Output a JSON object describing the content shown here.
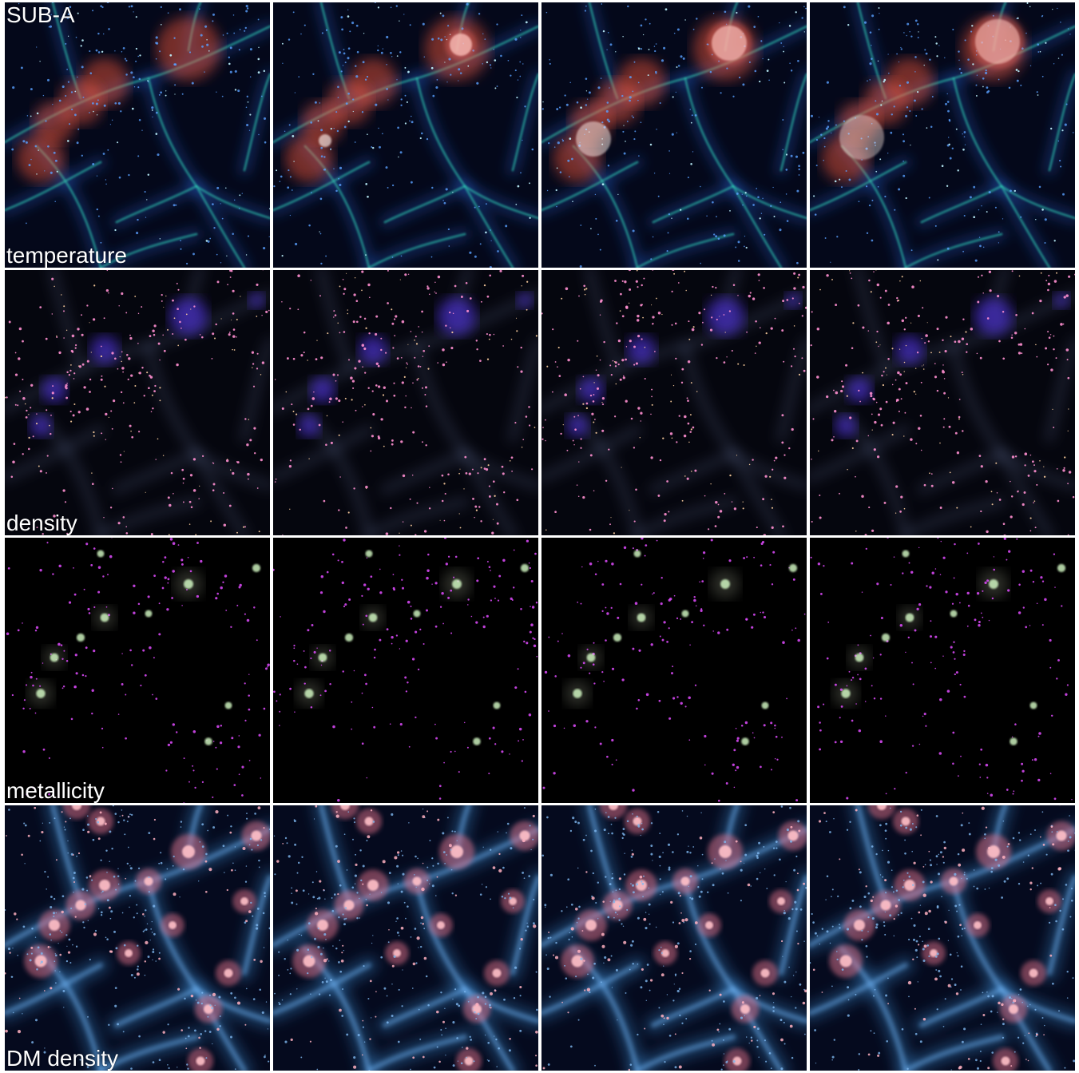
{
  "figure": {
    "simulation_label": "SUB-A",
    "rows": [
      {
        "label": "temperature",
        "style": "temperature"
      },
      {
        "label": "density",
        "style": "density"
      },
      {
        "label": "metallicity",
        "style": "metallicity"
      },
      {
        "label": "DM density",
        "style": "dm"
      }
    ],
    "columns": 4
  },
  "palette": {
    "background": "#ffffff",
    "temperature_hot": "#ff5a3c",
    "temperature_filament": "#2fc6b0",
    "temperature_web": "#2a64d8",
    "density_glow": "#5b3cff",
    "density_clump": "#ff8fd0",
    "metallicity_clump": "#e04bff",
    "metallicity_core": "#d8ffc8",
    "dm_filament": "#3e8fd8",
    "dm_halo": "#ffc0c8"
  }
}
